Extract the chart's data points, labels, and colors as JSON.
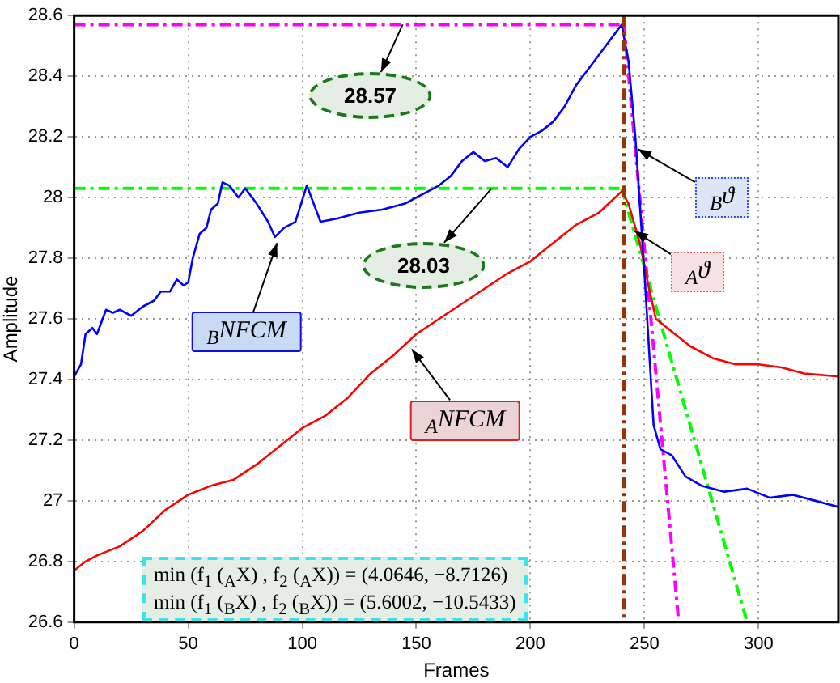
{
  "chart_data": {
    "type": "line",
    "xlabel": "Frames",
    "ylabel": "Amplitude",
    "xlim": [
      0,
      335
    ],
    "ylim": [
      26.6,
      28.6
    ],
    "xticks": [
      0,
      50,
      100,
      150,
      200,
      250,
      300
    ],
    "yticks": [
      26.6,
      26.8,
      27,
      27.2,
      27.4,
      27.6,
      27.8,
      28,
      28.2,
      28.4,
      28.6
    ],
    "grid": true,
    "legend": false,
    "marker": "none",
    "series": [
      {
        "color": "#0000ff",
        "x": [
          0,
          3,
          5,
          8,
          10,
          14,
          17,
          20,
          25,
          30,
          35,
          38,
          42,
          45,
          48,
          50,
          52,
          55,
          58,
          60,
          63,
          65,
          68,
          72,
          75,
          80,
          85,
          88,
          92,
          97,
          102,
          108,
          115,
          125,
          135,
          145,
          155,
          160,
          165,
          170,
          175,
          180,
          185,
          190,
          195,
          200,
          205,
          210,
          215,
          220,
          225,
          230,
          235,
          240,
          243,
          246,
          250,
          254,
          257,
          262,
          268,
          275,
          285,
          295,
          305,
          315,
          325,
          335
        ],
        "values": [
          27.41,
          27.45,
          27.55,
          27.57,
          27.55,
          27.63,
          27.62,
          27.63,
          27.61,
          27.64,
          27.66,
          27.69,
          27.69,
          27.73,
          27.71,
          27.72,
          27.8,
          27.88,
          27.9,
          27.96,
          27.98,
          28.05,
          28.04,
          28,
          28.03,
          27.98,
          27.92,
          27.87,
          27.9,
          27.92,
          28.04,
          27.92,
          27.93,
          27.95,
          27.96,
          27.98,
          28.02,
          28.04,
          28.07,
          28.12,
          28.15,
          28.12,
          28.13,
          28.1,
          28.16,
          28.2,
          28.22,
          28.25,
          28.3,
          28.37,
          28.42,
          28.47,
          28.52,
          28.57,
          28.45,
          28.2,
          27.75,
          27.25,
          27.17,
          27.15,
          27.08,
          27.05,
          27.03,
          27.04,
          27.01,
          27.02,
          27,
          26.98
        ]
      },
      {
        "color": "#ff0000",
        "x": [
          0,
          5,
          10,
          20,
          30,
          40,
          50,
          60,
          70,
          80,
          90,
          100,
          110,
          120,
          130,
          140,
          150,
          160,
          170,
          180,
          190,
          200,
          210,
          220,
          230,
          240,
          243,
          248,
          252,
          255,
          260,
          270,
          280,
          290,
          300,
          310,
          320,
          335
        ],
        "values": [
          26.77,
          26.8,
          26.82,
          26.85,
          26.9,
          26.97,
          27.02,
          27.05,
          27.07,
          27.12,
          27.18,
          27.24,
          27.28,
          27.34,
          27.42,
          27.48,
          27.55,
          27.6,
          27.65,
          27.7,
          27.75,
          27.79,
          27.85,
          27.91,
          27.95,
          28.02,
          27.98,
          27.85,
          27.7,
          27.6,
          27.57,
          27.51,
          27.47,
          27.45,
          27.45,
          27.44,
          27.42,
          27.41
        ]
      },
      {
        "color": "#ff00ff",
        "line_style": "dashed",
        "x": [
          0,
          241
        ],
        "values": [
          28.57,
          28.57
        ]
      },
      {
        "color": "#00ff00",
        "line_style": "dashed",
        "x": [
          0,
          240
        ],
        "values": [
          28.03,
          28.03
        ]
      },
      {
        "color": "#ff00ff",
        "line_style": "dashed",
        "x": [
          241,
          265
        ],
        "values": [
          28.57,
          26.6
        ]
      },
      {
        "color": "#00ff00",
        "line_style": "dashed",
        "x": [
          240,
          295
        ],
        "values": [
          28.03,
          26.6
        ]
      }
    ],
    "ref_lines": [
      {
        "axis": "x",
        "value": 241,
        "color": "#993300",
        "line_style": "dashed"
      }
    ],
    "annotations": [
      {
        "text": "28.57",
        "x": 144,
        "y": 28.57
      },
      {
        "text": "28.03",
        "x": 183,
        "y": 28.03
      },
      {
        "text": "$_{B}$NFCM",
        "x": 89,
        "y": 27.85
      },
      {
        "text": "$_{A}$NFCM",
        "x": 148,
        "y": 27.5
      },
      {
        "text": "$_{B}$ϑ",
        "x": 247,
        "y": 28.16
      },
      {
        "text": "$_{A}$ϑ",
        "x": 245.6,
        "y": 27.89
      },
      "min (f$_{1}$ ($_{A}$X) , f$_{2}$ ($_{A}$X)) = (4.0646, −8.7126)",
      "min (f$_{1}$ ($_{B}$X) , f$_{2}$ ($_{B}$X)) = (5.6002, −10.5433)"
    ]
  }
}
